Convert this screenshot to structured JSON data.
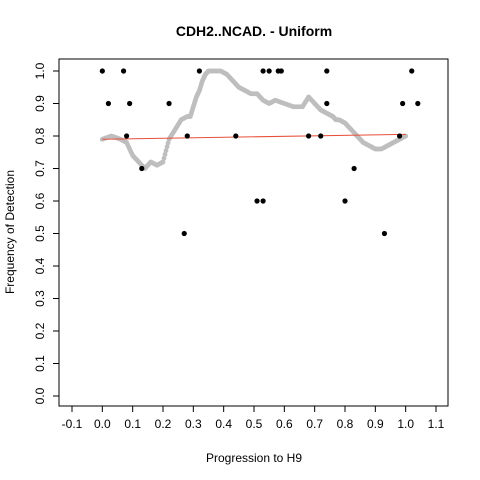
{
  "chart_data": {
    "type": "scatter",
    "title": "CDH2..NCAD. - Uniform",
    "xlabel": "Progression to H9",
    "ylabel": "Frequency of Detection",
    "xlim": [
      -0.1,
      1.1
    ],
    "ylim": [
      0.0,
      1.0
    ],
    "xticks": [
      "-0.1",
      "0.0",
      "0.1",
      "0.2",
      "0.3",
      "0.4",
      "0.5",
      "0.6",
      "0.7",
      "0.8",
      "0.9",
      "1.0",
      "1.1"
    ],
    "yticks": [
      "0.0",
      "0.1",
      "0.2",
      "0.3",
      "0.4",
      "0.5",
      "0.6",
      "0.7",
      "0.8",
      "0.9",
      "1.0"
    ],
    "grid": false,
    "colors": {
      "points": "#000000",
      "smooth": "#bebebe",
      "trend": "#e8503a"
    },
    "series": [
      {
        "kind": "points",
        "x": [
          0.0,
          0.02,
          0.07,
          0.08,
          0.09,
          0.13,
          0.22,
          0.27,
          0.28,
          0.32,
          0.44,
          0.51,
          0.53,
          0.53,
          0.55,
          0.58,
          0.59,
          0.68,
          0.72,
          0.74,
          0.74,
          0.8,
          0.83,
          0.93,
          0.98,
          0.99,
          1.02,
          1.04
        ],
        "y": [
          1.0,
          0.9,
          1.0,
          0.8,
          0.9,
          0.7,
          0.9,
          0.5,
          0.8,
          1.0,
          0.8,
          0.6,
          1.0,
          0.6,
          1.0,
          1.0,
          1.0,
          0.8,
          0.8,
          0.9,
          1.0,
          0.6,
          0.7,
          0.5,
          0.8,
          0.9,
          1.0,
          0.9
        ]
      },
      {
        "kind": "smooth",
        "x": [
          0.0,
          0.03,
          0.06,
          0.08,
          0.1,
          0.12,
          0.14,
          0.16,
          0.18,
          0.2,
          0.22,
          0.24,
          0.26,
          0.28,
          0.29,
          0.3,
          0.31,
          0.32,
          0.33,
          0.34,
          0.35,
          0.37,
          0.39,
          0.41,
          0.43,
          0.45,
          0.47,
          0.49,
          0.51,
          0.53,
          0.55,
          0.57,
          0.6,
          0.63,
          0.66,
          0.68,
          0.7,
          0.72,
          0.74,
          0.76,
          0.77,
          0.78,
          0.8,
          0.82,
          0.84,
          0.86,
          0.88,
          0.9,
          0.92,
          0.94,
          0.96,
          0.98,
          1.0
        ],
        "y": [
          0.79,
          0.8,
          0.79,
          0.78,
          0.74,
          0.72,
          0.7,
          0.72,
          0.71,
          0.72,
          0.79,
          0.82,
          0.85,
          0.86,
          0.86,
          0.89,
          0.92,
          0.94,
          0.97,
          0.99,
          1.0,
          1.0,
          1.0,
          0.99,
          0.97,
          0.95,
          0.94,
          0.93,
          0.93,
          0.91,
          0.9,
          0.91,
          0.9,
          0.89,
          0.89,
          0.92,
          0.9,
          0.88,
          0.87,
          0.86,
          0.85,
          0.85,
          0.84,
          0.82,
          0.8,
          0.78,
          0.77,
          0.76,
          0.76,
          0.77,
          0.78,
          0.79,
          0.8
        ]
      },
      {
        "kind": "trend",
        "x": [
          0.0,
          1.0
        ],
        "y": [
          0.79,
          0.805
        ]
      }
    ]
  }
}
